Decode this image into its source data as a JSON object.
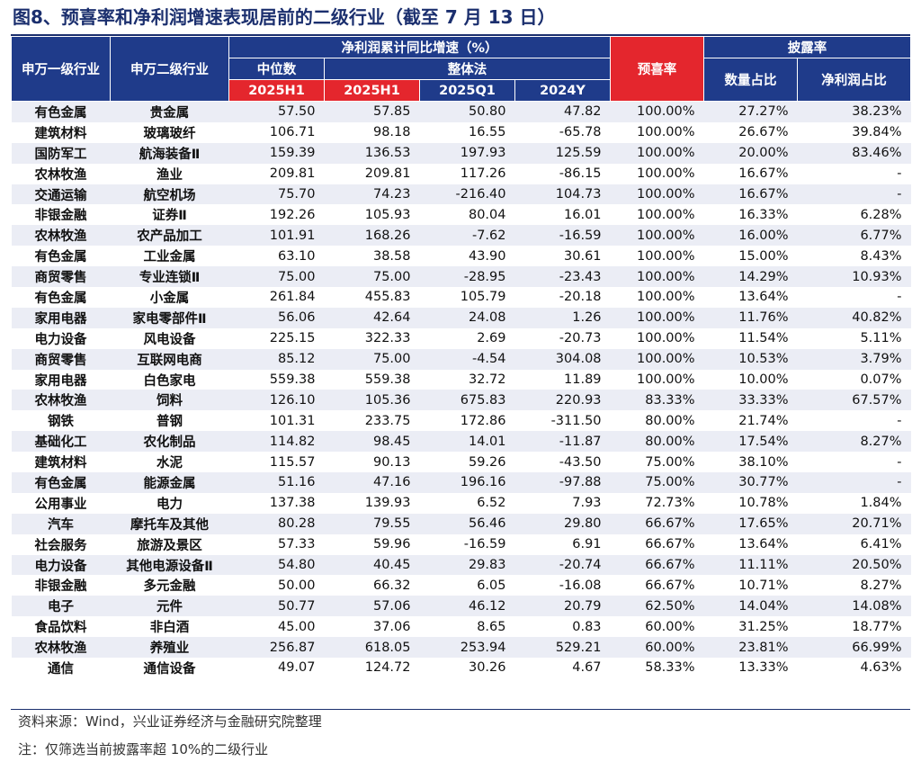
{
  "title": "图8、预喜率和净利润增速表现居前的二级行业（截至 7 月 13 日）",
  "header": {
    "l1": "申万一级行业",
    "l2": "申万二级行业",
    "growth_group": "净利润累计同比增速（%）",
    "median": "中位数",
    "overall": "整体法",
    "median_2025h1": "2025H1",
    "overall_2025h1": "2025H1",
    "overall_2025q1": "2025Q1",
    "overall_2024y": "2024Y",
    "preannounce": "预喜率",
    "disclosure": "披露率",
    "count_ratio": "数量占比",
    "profit_ratio": "净利润占比"
  },
  "rows": [
    [
      "有色金属",
      "贵金属",
      "57.50",
      "57.85",
      "50.80",
      "47.82",
      "100.00%",
      "27.27%",
      "38.23%"
    ],
    [
      "建筑材料",
      "玻璃玻纤",
      "106.71",
      "98.18",
      "16.55",
      "-65.78",
      "100.00%",
      "26.67%",
      "39.84%"
    ],
    [
      "国防军工",
      "航海装备Ⅱ",
      "159.39",
      "136.53",
      "197.93",
      "125.59",
      "100.00%",
      "20.00%",
      "83.46%"
    ],
    [
      "农林牧渔",
      "渔业",
      "209.81",
      "209.81",
      "117.26",
      "-86.15",
      "100.00%",
      "16.67%",
      "-"
    ],
    [
      "交通运输",
      "航空机场",
      "75.70",
      "74.23",
      "-216.40",
      "104.73",
      "100.00%",
      "16.67%",
      "-"
    ],
    [
      "非银金融",
      "证券Ⅱ",
      "192.26",
      "105.93",
      "80.04",
      "16.01",
      "100.00%",
      "16.33%",
      "6.28%"
    ],
    [
      "农林牧渔",
      "农产品加工",
      "101.91",
      "168.26",
      "-7.62",
      "-16.59",
      "100.00%",
      "16.00%",
      "6.77%"
    ],
    [
      "有色金属",
      "工业金属",
      "63.10",
      "38.58",
      "43.90",
      "30.61",
      "100.00%",
      "15.00%",
      "8.43%"
    ],
    [
      "商贸零售",
      "专业连锁Ⅱ",
      "75.00",
      "75.00",
      "-28.95",
      "-23.43",
      "100.00%",
      "14.29%",
      "10.93%"
    ],
    [
      "有色金属",
      "小金属",
      "261.84",
      "455.83",
      "105.79",
      "-20.18",
      "100.00%",
      "13.64%",
      "-"
    ],
    [
      "家用电器",
      "家电零部件Ⅱ",
      "56.06",
      "42.64",
      "24.08",
      "1.26",
      "100.00%",
      "11.76%",
      "40.82%"
    ],
    [
      "电力设备",
      "风电设备",
      "225.15",
      "322.33",
      "2.69",
      "-20.73",
      "100.00%",
      "11.54%",
      "5.11%"
    ],
    [
      "商贸零售",
      "互联网电商",
      "85.12",
      "75.00",
      "-4.54",
      "304.08",
      "100.00%",
      "10.53%",
      "3.79%"
    ],
    [
      "家用电器",
      "白色家电",
      "559.38",
      "559.38",
      "32.72",
      "11.89",
      "100.00%",
      "10.00%",
      "0.07%"
    ],
    [
      "农林牧渔",
      "饲料",
      "126.10",
      "105.36",
      "675.83",
      "220.93",
      "83.33%",
      "33.33%",
      "67.57%"
    ],
    [
      "钢铁",
      "普钢",
      "101.31",
      "233.75",
      "172.86",
      "-311.50",
      "80.00%",
      "21.74%",
      "-"
    ],
    [
      "基础化工",
      "农化制品",
      "114.82",
      "98.45",
      "14.01",
      "-11.87",
      "80.00%",
      "17.54%",
      "8.27%"
    ],
    [
      "建筑材料",
      "水泥",
      "115.57",
      "90.13",
      "59.26",
      "-43.50",
      "75.00%",
      "38.10%",
      "-"
    ],
    [
      "有色金属",
      "能源金属",
      "51.16",
      "47.16",
      "196.16",
      "-97.88",
      "75.00%",
      "30.77%",
      "-"
    ],
    [
      "公用事业",
      "电力",
      "137.38",
      "139.93",
      "6.52",
      "7.93",
      "72.73%",
      "10.78%",
      "1.84%"
    ],
    [
      "汽车",
      "摩托车及其他",
      "80.28",
      "79.55",
      "56.46",
      "29.80",
      "66.67%",
      "17.65%",
      "20.71%"
    ],
    [
      "社会服务",
      "旅游及景区",
      "57.33",
      "59.96",
      "-16.59",
      "6.91",
      "66.67%",
      "13.64%",
      "6.41%"
    ],
    [
      "电力设备",
      "其他电源设备Ⅱ",
      "54.80",
      "40.45",
      "29.83",
      "-20.74",
      "66.67%",
      "11.11%",
      "20.50%"
    ],
    [
      "非银金融",
      "多元金融",
      "50.00",
      "66.32",
      "6.05",
      "-16.08",
      "66.67%",
      "10.71%",
      "8.27%"
    ],
    [
      "电子",
      "元件",
      "50.77",
      "57.06",
      "46.12",
      "20.79",
      "62.50%",
      "14.04%",
      "14.08%"
    ],
    [
      "食品饮料",
      "非白酒",
      "45.00",
      "37.06",
      "8.65",
      "0.83",
      "60.00%",
      "31.25%",
      "18.77%"
    ],
    [
      "农林牧渔",
      "养殖业",
      "256.87",
      "618.05",
      "253.94",
      "529.21",
      "60.00%",
      "23.81%",
      "66.99%"
    ],
    [
      "通信",
      "通信设备",
      "49.07",
      "124.72",
      "30.26",
      "4.67",
      "58.33%",
      "13.33%",
      "4.63%"
    ]
  ],
  "footer": {
    "source": "资料来源：Wind，兴业证券经济与金融研究院整理",
    "note": "注：仅筛选当前披露率超 10%的二级行业"
  }
}
